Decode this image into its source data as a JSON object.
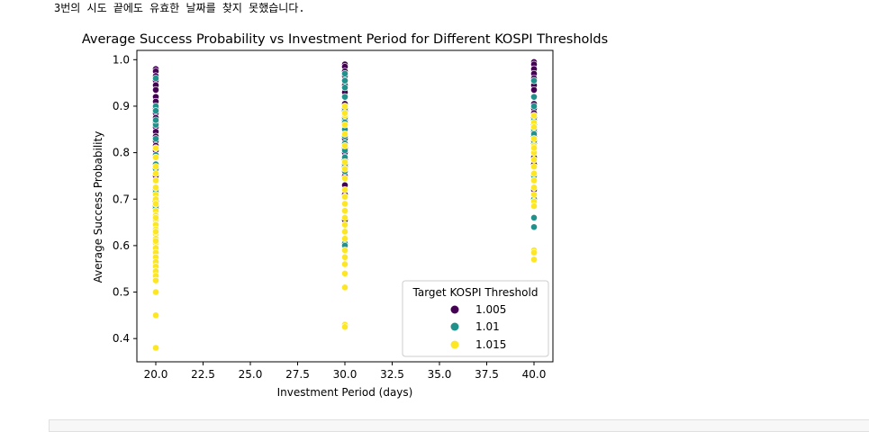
{
  "output": {
    "message": "3번의 시도 끝에도 유효한 날짜를 찾지 못했습니다."
  },
  "colors": {
    "c1005": "#440154",
    "c101": "#21918c",
    "c1015": "#fde725",
    "axis": "#000000"
  },
  "chart_data": {
    "type": "scatter",
    "title": "Average Success Probability vs Investment Period for Different KOSPI Thresholds",
    "xlabel": "Investment Period (days)",
    "ylabel": "Average Success Probability",
    "xlim": [
      19.0,
      41.0
    ],
    "ylim": [
      0.35,
      1.02
    ],
    "xticks": [
      "20.0",
      "22.5",
      "25.0",
      "27.5",
      "30.0",
      "32.5",
      "35.0",
      "37.5",
      "40.0"
    ],
    "yticks": [
      "0.4",
      "0.5",
      "0.6",
      "0.7",
      "0.8",
      "0.9",
      "1.0"
    ],
    "legend": {
      "title": "Target KOSPI Threshold",
      "position": "lower-right",
      "labels": [
        "1.005",
        "1.01",
        "1.015"
      ]
    },
    "series": [
      {
        "name": "1.005",
        "color": "#440154",
        "x": [
          20,
          20,
          20,
          20,
          20,
          20,
          20,
          20,
          20,
          20,
          20,
          20,
          20,
          20,
          20,
          20,
          20,
          20,
          20,
          20,
          20,
          20,
          20,
          20,
          20,
          20,
          30,
          30,
          30,
          30,
          30,
          30,
          30,
          30,
          30,
          30,
          30,
          30,
          30,
          30,
          30,
          30,
          30,
          30,
          30,
          30,
          30,
          30,
          30,
          30,
          30,
          30,
          40,
          40,
          40,
          40,
          40,
          40,
          40,
          40,
          40,
          40,
          40,
          40,
          40,
          40,
          40,
          40,
          40,
          40,
          40,
          40,
          40,
          40,
          40,
          40
        ],
        "y": [
          0.98,
          0.975,
          0.965,
          0.955,
          0.945,
          0.935,
          0.92,
          0.91,
          0.9,
          0.895,
          0.885,
          0.875,
          0.865,
          0.855,
          0.845,
          0.835,
          0.825,
          0.815,
          0.805,
          0.79,
          0.775,
          0.75,
          0.72,
          0.695,
          0.685,
          0.675,
          0.99,
          0.985,
          0.975,
          0.965,
          0.955,
          0.945,
          0.93,
          0.92,
          0.905,
          0.89,
          0.88,
          0.87,
          0.86,
          0.85,
          0.84,
          0.83,
          0.82,
          0.81,
          0.8,
          0.785,
          0.77,
          0.75,
          0.73,
          0.71,
          0.675,
          0.655,
          0.995,
          0.99,
          0.98,
          0.97,
          0.96,
          0.945,
          0.935,
          0.92,
          0.905,
          0.895,
          0.885,
          0.875,
          0.865,
          0.855,
          0.845,
          0.835,
          0.82,
          0.8,
          0.79,
          0.775,
          0.75,
          0.74,
          0.72,
          0.7
        ]
      },
      {
        "name": "1.01",
        "color": "#21918c",
        "x": [
          20,
          20,
          20,
          20,
          20,
          20,
          20,
          20,
          20,
          20,
          20,
          20,
          20,
          20,
          20,
          20,
          20,
          30,
          30,
          30,
          30,
          30,
          30,
          30,
          30,
          30,
          30,
          30,
          30,
          30,
          30,
          30,
          30,
          30,
          30,
          40,
          40,
          40,
          40,
          40,
          40,
          40,
          40,
          40,
          40,
          40,
          40,
          40,
          40,
          40
        ],
        "y": [
          0.96,
          0.9,
          0.89,
          0.86,
          0.83,
          0.795,
          0.775,
          0.765,
          0.74,
          0.72,
          0.715,
          0.68,
          0.655,
          0.645,
          0.63,
          0.81,
          0.87,
          0.97,
          0.955,
          0.94,
          0.92,
          0.895,
          0.875,
          0.865,
          0.85,
          0.835,
          0.82,
          0.805,
          0.79,
          0.775,
          0.76,
          0.745,
          0.705,
          0.605,
          0.6,
          0.955,
          0.92,
          0.9,
          0.87,
          0.86,
          0.85,
          0.84,
          0.825,
          0.8,
          0.77,
          0.75,
          0.725,
          0.7,
          0.66,
          0.64
        ]
      },
      {
        "name": "1.015",
        "color": "#fde725",
        "x": [
          20,
          20,
          20,
          20,
          20,
          20,
          20,
          20,
          20,
          20,
          20,
          20,
          20,
          20,
          20,
          20,
          20,
          20,
          20,
          20,
          20,
          20,
          20,
          20,
          20,
          20,
          20,
          20,
          20,
          20,
          20,
          30,
          30,
          30,
          30,
          30,
          30,
          30,
          30,
          30,
          30,
          30,
          30,
          30,
          30,
          30,
          30,
          30,
          30,
          30,
          30,
          30,
          30,
          30,
          30,
          40,
          40,
          40,
          40,
          40,
          40,
          40,
          40,
          40,
          40,
          40,
          40,
          40,
          40,
          40,
          40,
          40,
          40
        ],
        "y": [
          0.81,
          0.79,
          0.77,
          0.755,
          0.74,
          0.725,
          0.71,
          0.7,
          0.675,
          0.665,
          0.655,
          0.645,
          0.635,
          0.625,
          0.615,
          0.605,
          0.595,
          0.585,
          0.575,
          0.565,
          0.555,
          0.545,
          0.535,
          0.525,
          0.5,
          0.45,
          0.38,
          0.63,
          0.66,
          0.69,
          0.61,
          0.9,
          0.88,
          0.86,
          0.84,
          0.78,
          0.765,
          0.745,
          0.72,
          0.705,
          0.69,
          0.675,
          0.66,
          0.645,
          0.63,
          0.615,
          0.59,
          0.575,
          0.56,
          0.54,
          0.51,
          0.43,
          0.425,
          0.885,
          0.815,
          0.88,
          0.865,
          0.83,
          0.815,
          0.8,
          0.785,
          0.77,
          0.755,
          0.74,
          0.725,
          0.71,
          0.695,
          0.685,
          0.59,
          0.585,
          0.57,
          0.855,
          0.81
        ]
      }
    ]
  }
}
